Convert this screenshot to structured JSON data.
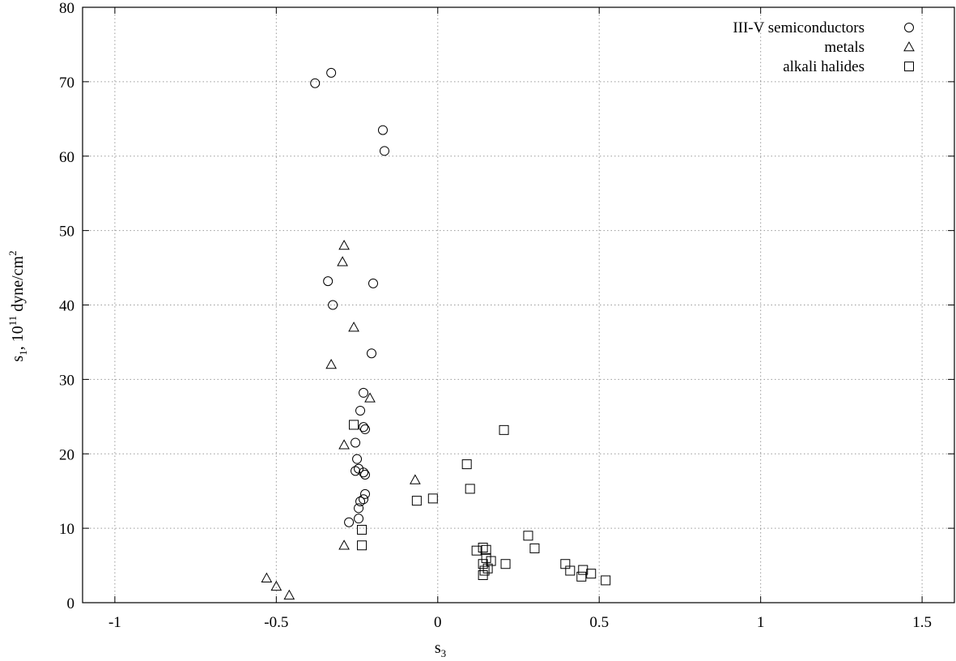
{
  "chart_data": {
    "type": "scatter",
    "title": "",
    "xlabel": "s",
    "xlabel_sub": "3",
    "ylabel_parts": {
      "s": "s",
      "sub": "1",
      "mid": ", 10",
      "exp": "11",
      "unit": " dyne/cm",
      "unit_exp": "2"
    },
    "xlim": [
      -1.1,
      1.6
    ],
    "ylim": [
      0,
      80
    ],
    "xticks": [
      -1,
      -0.5,
      0,
      0.5,
      1,
      1.5
    ],
    "yticks": [
      0,
      10,
      20,
      30,
      40,
      50,
      60,
      70,
      80
    ],
    "grid": true,
    "legend_position": "top-right",
    "series": [
      {
        "name": "III-V semiconductors",
        "marker": "circle",
        "points": [
          [
            -0.38,
            69.8
          ],
          [
            -0.33,
            71.2
          ],
          [
            -0.17,
            63.5
          ],
          [
            -0.165,
            60.7
          ],
          [
            -0.34,
            43.2
          ],
          [
            -0.2,
            42.9
          ],
          [
            -0.325,
            40.0
          ],
          [
            -0.205,
            33.5
          ],
          [
            -0.23,
            28.2
          ],
          [
            -0.24,
            25.8
          ],
          [
            -0.23,
            23.6
          ],
          [
            -0.225,
            23.3
          ],
          [
            -0.255,
            21.5
          ],
          [
            -0.25,
            19.3
          ],
          [
            -0.245,
            18.0
          ],
          [
            -0.255,
            17.7
          ],
          [
            -0.23,
            17.5
          ],
          [
            -0.225,
            17.2
          ],
          [
            -0.225,
            14.6
          ],
          [
            -0.23,
            13.9
          ],
          [
            -0.24,
            13.6
          ],
          [
            -0.245,
            12.7
          ],
          [
            -0.245,
            11.3
          ],
          [
            -0.275,
            10.8
          ]
        ]
      },
      {
        "name": "metals",
        "marker": "triangle",
        "points": [
          [
            -0.29,
            48.0
          ],
          [
            -0.295,
            45.8
          ],
          [
            -0.26,
            37.0
          ],
          [
            -0.33,
            32.0
          ],
          [
            -0.21,
            27.5
          ],
          [
            -0.29,
            21.2
          ],
          [
            -0.07,
            16.5
          ],
          [
            -0.29,
            7.7
          ],
          [
            -0.53,
            3.3
          ],
          [
            -0.5,
            2.2
          ],
          [
            -0.46,
            1.0
          ]
        ]
      },
      {
        "name": "alkali halides",
        "marker": "square",
        "points": [
          [
            -0.26,
            23.9
          ],
          [
            0.205,
            23.2
          ],
          [
            0.09,
            18.6
          ],
          [
            0.1,
            15.3
          ],
          [
            -0.015,
            14.0
          ],
          [
            -0.065,
            13.7
          ],
          [
            -0.235,
            9.8
          ],
          [
            -0.235,
            7.7
          ],
          [
            0.28,
            9.0
          ],
          [
            0.3,
            7.3
          ],
          [
            0.14,
            7.4
          ],
          [
            0.15,
            7.1
          ],
          [
            0.12,
            7.0
          ],
          [
            0.15,
            6.0
          ],
          [
            0.165,
            5.6
          ],
          [
            0.14,
            5.2
          ],
          [
            0.21,
            5.2
          ],
          [
            0.395,
            5.2
          ],
          [
            0.155,
            4.6
          ],
          [
            0.145,
            4.3
          ],
          [
            0.14,
            3.7
          ],
          [
            0.41,
            4.3
          ],
          [
            0.45,
            4.4
          ],
          [
            0.475,
            3.9
          ],
          [
            0.445,
            3.5
          ],
          [
            0.52,
            3.0
          ]
        ]
      }
    ]
  }
}
